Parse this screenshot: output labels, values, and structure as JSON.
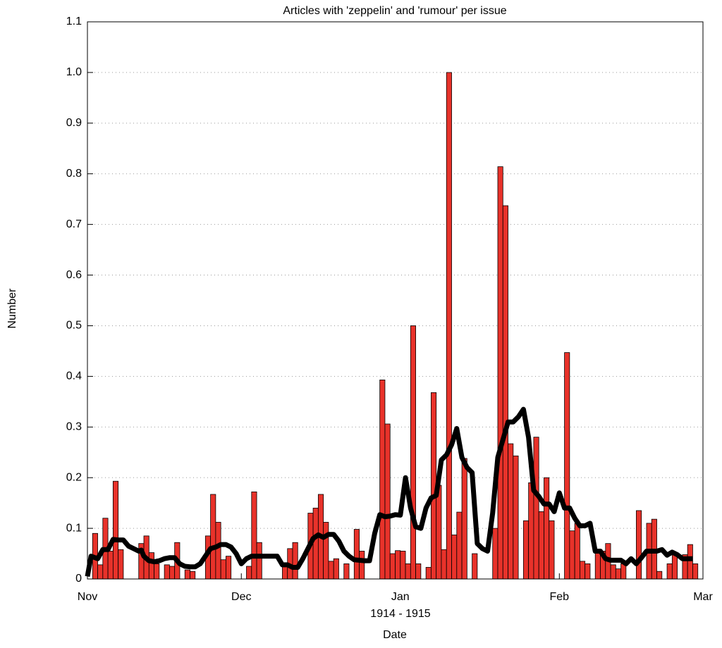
{
  "chart_data": {
    "type": "bar",
    "title": "Articles with 'zeppelin' and 'rumour' per issue",
    "ylabel": "Number",
    "xlabel": "Date",
    "annotation": "1914 - 1915",
    "xlim": [
      0,
      120
    ],
    "xticks": [
      {
        "value": 0,
        "label": "Nov"
      },
      {
        "value": 30,
        "label": "Dec"
      },
      {
        "value": 61,
        "label": "Jan"
      },
      {
        "value": 92,
        "label": "Feb"
      },
      {
        "value": 120,
        "label": "Mar"
      }
    ],
    "ylim": [
      0,
      1.1
    ],
    "yticks": [
      0,
      0.1,
      0.2,
      0.3,
      0.4,
      0.5,
      0.6,
      0.7,
      0.8,
      0.9,
      {
        "value": 1.0,
        "label": "1.0"
      },
      1.1
    ],
    "grid": true,
    "bars": {
      "color": "#e8322a",
      "x": [
        1,
        2,
        3,
        4,
        5,
        6,
        10,
        11,
        12,
        13,
        15,
        16,
        17,
        19,
        20,
        23,
        24,
        25,
        26,
        27,
        31,
        32,
        33,
        38,
        39,
        40,
        43,
        44,
        45,
        46,
        47,
        48,
        50,
        52,
        53,
        57,
        58,
        59,
        60,
        61,
        62,
        63,
        64,
        66,
        67,
        68,
        69,
        70,
        71,
        72,
        73,
        75,
        79,
        80,
        81,
        82,
        83,
        85,
        86,
        87,
        88,
        89,
        90,
        93,
        94,
        95,
        96,
        97,
        99,
        100,
        101,
        102,
        103,
        104,
        107,
        109,
        110,
        111,
        113,
        114,
        116,
        117,
        118
      ],
      "values": [
        0.09,
        0.028,
        0.12,
        0.055,
        0.193,
        0.058,
        0.07,
        0.085,
        0.052,
        0.03,
        0.028,
        0.025,
        0.072,
        0.018,
        0.015,
        0.085,
        0.167,
        0.112,
        0.038,
        0.045,
        0.025,
        0.172,
        0.072,
        0.025,
        0.06,
        0.072,
        0.13,
        0.14,
        0.167,
        0.112,
        0.035,
        0.04,
        0.03,
        0.098,
        0.055,
        0.393,
        0.306,
        0.05,
        0.056,
        0.055,
        0.03,
        0.5,
        0.03,
        0.023,
        0.368,
        0.185,
        0.058,
        1.0,
        0.087,
        0.132,
        0.238,
        0.05,
        0.1,
        0.814,
        0.737,
        0.267,
        0.243,
        0.115,
        0.19,
        0.28,
        0.133,
        0.2,
        0.115,
        0.447,
        0.095,
        0.11,
        0.035,
        0.03,
        0.055,
        0.055,
        0.07,
        0.028,
        0.02,
        0.03,
        0.135,
        0.11,
        0.118,
        0.015,
        0.03,
        0.05,
        0.048,
        0.068,
        0.03
      ]
    },
    "line": {
      "color": "#000000",
      "x": [
        0,
        0.7,
        2,
        3,
        4,
        5,
        6,
        7,
        8,
        9,
        10,
        10.5,
        11,
        12,
        13,
        14,
        15,
        16,
        17,
        18,
        19,
        20,
        21,
        22,
        23,
        24,
        25,
        26,
        27,
        28,
        29,
        30,
        31,
        32,
        33,
        34,
        35,
        36,
        37,
        38,
        39,
        40,
        41,
        42,
        43,
        44,
        45,
        46,
        47,
        48,
        49,
        50,
        51,
        52,
        53,
        54,
        55,
        56,
        57,
        58,
        59,
        60,
        61,
        62,
        63,
        64,
        65,
        66,
        67,
        68,
        69,
        70,
        71,
        72,
        73,
        74,
        75,
        76,
        77,
        78,
        79,
        80,
        81,
        82,
        83,
        84,
        85,
        86,
        87,
        88,
        89,
        90,
        91,
        92,
        93,
        94,
        95,
        96,
        97,
        98,
        99,
        100,
        101,
        102,
        103,
        104,
        105,
        106,
        107,
        108,
        109,
        110,
        111,
        112,
        113,
        114,
        115,
        116,
        117,
        118
      ],
      "values": [
        0.005,
        0.045,
        0.04,
        0.058,
        0.058,
        0.078,
        0.077,
        0.077,
        0.065,
        0.06,
        0.055,
        0.057,
        0.045,
        0.036,
        0.034,
        0.036,
        0.04,
        0.042,
        0.042,
        0.03,
        0.025,
        0.024,
        0.024,
        0.03,
        0.045,
        0.06,
        0.063,
        0.068,
        0.068,
        0.063,
        0.05,
        0.03,
        0.04,
        0.045,
        0.045,
        0.045,
        0.045,
        0.045,
        0.045,
        0.028,
        0.028,
        0.023,
        0.023,
        0.04,
        0.06,
        0.08,
        0.087,
        0.082,
        0.088,
        0.088,
        0.075,
        0.055,
        0.045,
        0.038,
        0.037,
        0.036,
        0.036,
        0.09,
        0.127,
        0.123,
        0.124,
        0.127,
        0.126,
        0.2,
        0.14,
        0.103,
        0.1,
        0.14,
        0.16,
        0.165,
        0.235,
        0.245,
        0.265,
        0.297,
        0.24,
        0.22,
        0.21,
        0.07,
        0.06,
        0.055,
        0.13,
        0.24,
        0.275,
        0.31,
        0.31,
        0.32,
        0.335,
        0.28,
        0.175,
        0.163,
        0.148,
        0.148,
        0.133,
        0.17,
        0.14,
        0.14,
        0.12,
        0.105,
        0.105,
        0.11,
        0.055,
        0.055,
        0.04,
        0.037,
        0.037,
        0.037,
        0.03,
        0.04,
        0.03,
        0.042,
        0.055,
        0.055,
        0.055,
        0.058,
        0.047,
        0.053,
        0.048,
        0.04,
        0.04,
        0.04
      ]
    }
  }
}
